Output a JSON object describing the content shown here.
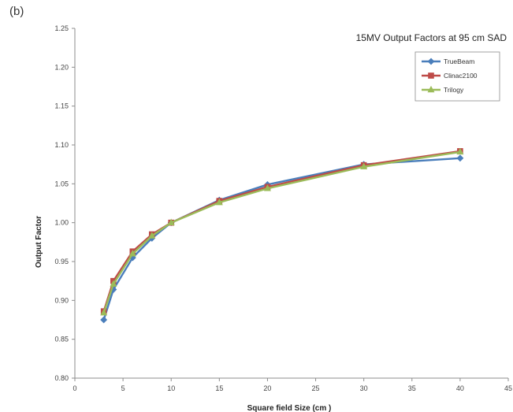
{
  "panel_label": "(b)",
  "chart_data": {
    "type": "line",
    "title": "15MV Output Factors at 95 cm SAD",
    "xlabel": "Square field Size (cm )",
    "ylabel": "Output Factor",
    "xlim": [
      0,
      45
    ],
    "ylim": [
      0.8,
      1.25
    ],
    "x_ticks": [
      "0",
      "5",
      "10",
      "15",
      "20",
      "25",
      "30",
      "35",
      "40",
      "45"
    ],
    "y_ticks": [
      "0.80",
      "0.85",
      "0.90",
      "0.95",
      "1.00",
      "1.05",
      "1.10",
      "1.15",
      "1.20",
      "1.25"
    ],
    "grid": false,
    "legend": "top-right",
    "x": [
      3,
      4,
      6,
      8,
      10,
      15,
      20,
      30,
      40
    ],
    "series": [
      {
        "name": "TrueBeam",
        "color": "#4a7ebb",
        "marker": "diamond",
        "values": [
          0.875,
          0.914,
          0.955,
          0.98,
          1.0,
          1.029,
          1.049,
          1.075,
          1.083
        ]
      },
      {
        "name": "Clinac2100",
        "color": "#be4b48",
        "marker": "square",
        "values": [
          0.886,
          0.925,
          0.963,
          0.985,
          1.0,
          1.028,
          1.046,
          1.074,
          1.092
        ]
      },
      {
        "name": "Trilogy",
        "color": "#9bbb59",
        "marker": "triangle",
        "values": [
          0.884,
          0.921,
          0.96,
          0.983,
          1.0,
          1.026,
          1.044,
          1.072,
          1.091
        ]
      }
    ]
  }
}
